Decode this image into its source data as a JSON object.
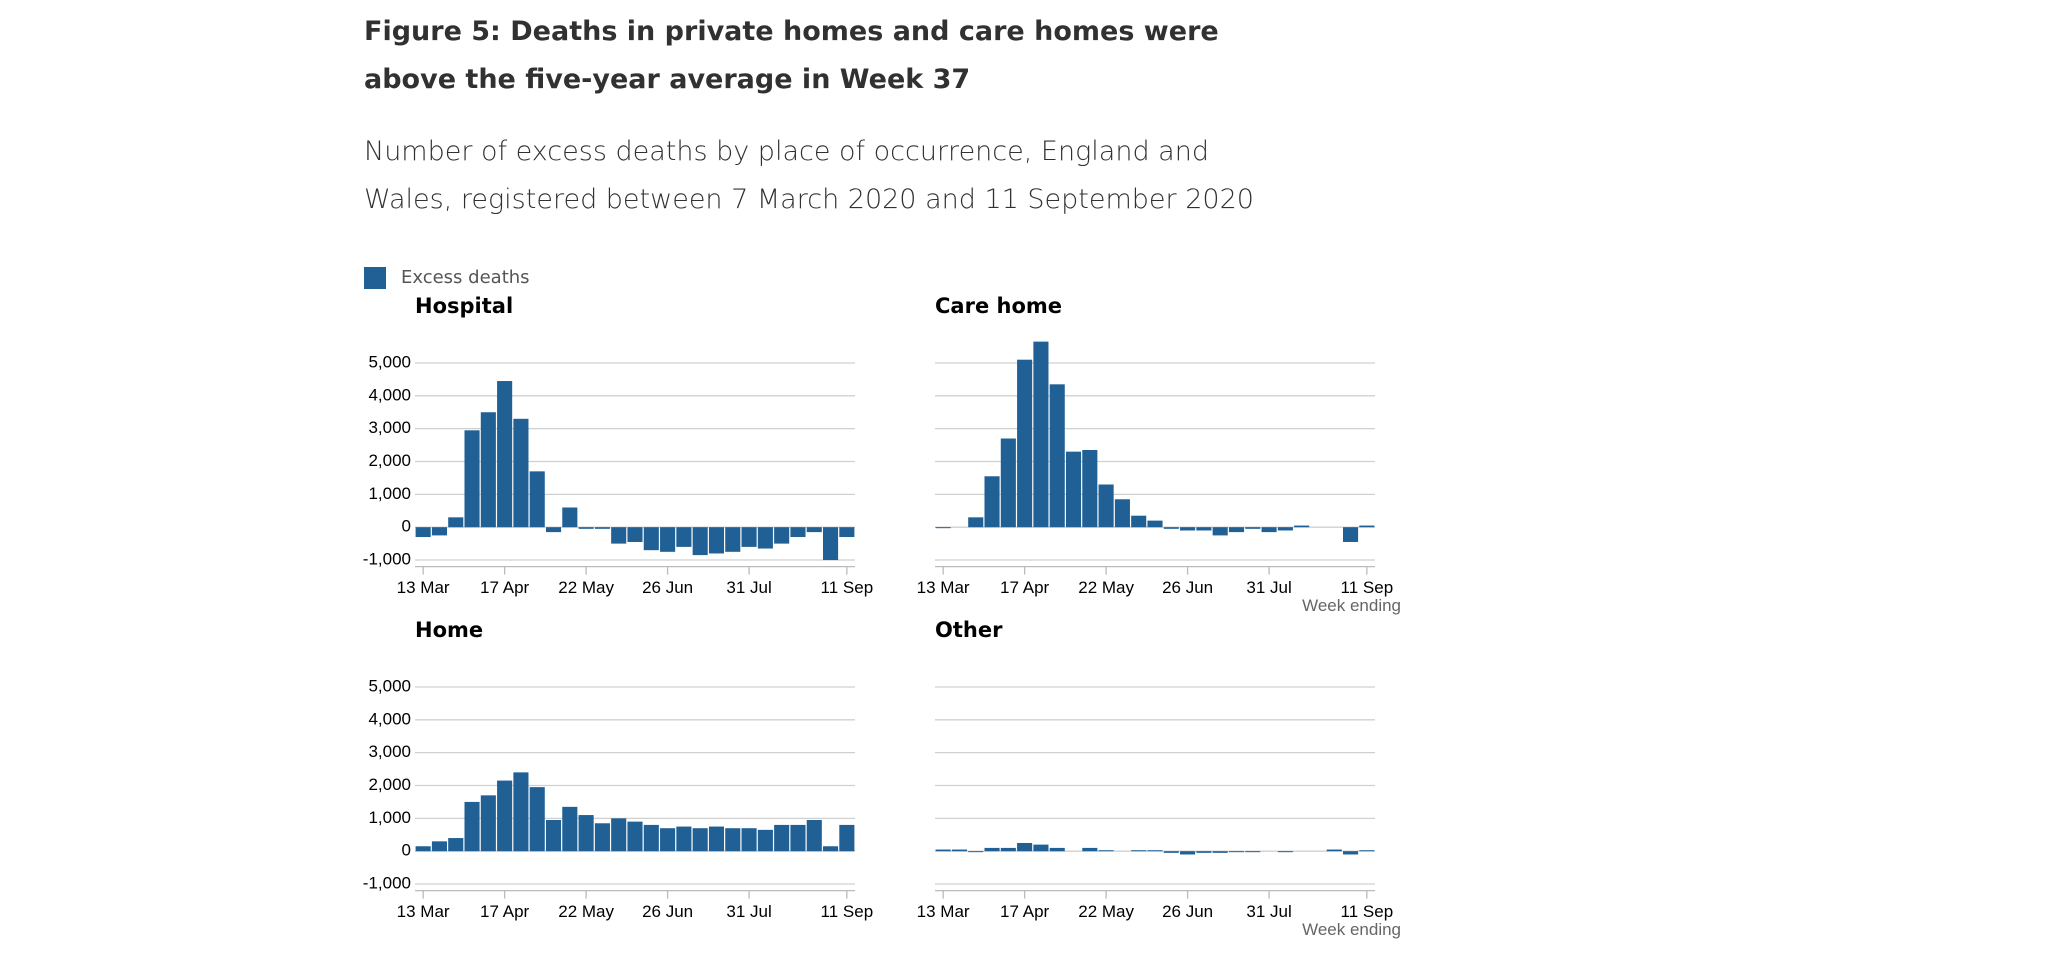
{
  "title": "Figure 5: Deaths in private homes and care homes were above the five-year average in Week 37",
  "subtitle": "Number of excess deaths by place of occurrence, England and Wales, registered between 7 March 2020 and 11 September 2020",
  "legend": {
    "label": "Excess deaths",
    "color": "#206095"
  },
  "chart_data": [
    {
      "type": "bar",
      "title": "Hospital",
      "color": "#206095",
      "categories": [
        "13 Mar",
        null,
        null,
        null,
        null,
        "17 Apr",
        null,
        null,
        null,
        null,
        "22 May",
        null,
        null,
        null,
        null,
        "26 Jun",
        null,
        null,
        null,
        null,
        "31 Jul",
        null,
        null,
        null,
        null,
        null,
        "11 Sep"
      ],
      "values": [
        -300,
        -250,
        300,
        2950,
        3500,
        4450,
        3300,
        1700,
        -150,
        600,
        -50,
        -50,
        -500,
        -450,
        -700,
        -750,
        -600,
        -850,
        -800,
        -750,
        -600,
        -650,
        -500,
        -300,
        -150,
        -1000,
        -300
      ],
      "ylim": [
        -1200,
        5800
      ],
      "yticks": [
        {
          "value": 5000,
          "label": "5,000"
        },
        {
          "value": 4000,
          "label": "4,000"
        },
        {
          "value": 3000,
          "label": "3,000"
        },
        {
          "value": 2000,
          "label": "2,000"
        },
        {
          "value": 1000,
          "label": "1,000"
        },
        0,
        {
          "value": -1000,
          "label": "-1,000"
        }
      ],
      "ytick_labels": true,
      "grid": true
    },
    {
      "type": "bar",
      "title": "Care home",
      "color": "#206095",
      "categories": [
        "13 Mar",
        null,
        null,
        null,
        null,
        "17 Apr",
        null,
        null,
        null,
        null,
        "22 May",
        null,
        null,
        null,
        null,
        "26 Jun",
        null,
        null,
        null,
        null,
        "31 Jul",
        null,
        null,
        null,
        null,
        null,
        "11 Sep"
      ],
      "values": [
        -30,
        0,
        300,
        1550,
        2700,
        5100,
        5650,
        4350,
        2300,
        2350,
        1300,
        850,
        350,
        200,
        -50,
        -100,
        -100,
        -250,
        -150,
        -50,
        -150,
        -100,
        50,
        0,
        0,
        -450,
        50
      ],
      "ylim": [
        -1200,
        5800
      ],
      "yticks": [
        {
          "value": 5000,
          "label": "5,000"
        },
        {
          "value": 4000,
          "label": "4,000"
        },
        {
          "value": 3000,
          "label": "3,000"
        },
        {
          "value": 2000,
          "label": "2,000"
        },
        {
          "value": 1000,
          "label": "1,000"
        },
        0,
        {
          "value": -1000,
          "label": "-1,000"
        }
      ],
      "ytick_labels": false,
      "grid": true,
      "xlabel": "Week ending"
    },
    {
      "type": "bar",
      "title": "Home",
      "color": "#206095",
      "categories": [
        "13 Mar",
        null,
        null,
        null,
        null,
        "17 Apr",
        null,
        null,
        null,
        null,
        "22 May",
        null,
        null,
        null,
        null,
        "26 Jun",
        null,
        null,
        null,
        null,
        "31 Jul",
        null,
        null,
        null,
        null,
        null,
        "11 Sep"
      ],
      "values": [
        150,
        300,
        400,
        1500,
        1700,
        2150,
        2400,
        1950,
        950,
        1350,
        1100,
        850,
        1000,
        900,
        800,
        700,
        750,
        700,
        750,
        700,
        700,
        650,
        800,
        800,
        950,
        150,
        800
      ],
      "ylim": [
        -1200,
        5800
      ],
      "yticks": [
        {
          "value": 5000,
          "label": "5,000"
        },
        {
          "value": 4000,
          "label": "4,000"
        },
        {
          "value": 3000,
          "label": "3,000"
        },
        {
          "value": 2000,
          "label": "2,000"
        },
        {
          "value": 1000,
          "label": "1,000"
        },
        0,
        {
          "value": -1000,
          "label": "-1,000"
        }
      ],
      "ytick_labels": true,
      "grid": true
    },
    {
      "type": "bar",
      "title": "Other",
      "color": "#206095",
      "categories": [
        "13 Mar",
        null,
        null,
        null,
        null,
        "17 Apr",
        null,
        null,
        null,
        null,
        "22 May",
        null,
        null,
        null,
        null,
        "26 Jun",
        null,
        null,
        null,
        null,
        "31 Jul",
        null,
        null,
        null,
        null,
        null,
        "11 Sep"
      ],
      "values": [
        50,
        50,
        -30,
        100,
        100,
        250,
        200,
        100,
        0,
        100,
        30,
        0,
        30,
        30,
        -50,
        -100,
        -50,
        -50,
        -30,
        -30,
        0,
        -30,
        0,
        0,
        50,
        -100,
        30
      ],
      "ylim": [
        -1200,
        5800
      ],
      "yticks": [
        {
          "value": 5000,
          "label": "5,000"
        },
        {
          "value": 4000,
          "label": "4,000"
        },
        {
          "value": 3000,
          "label": "3,000"
        },
        {
          "value": 2000,
          "label": "2,000"
        },
        {
          "value": 1000,
          "label": "1,000"
        },
        0,
        {
          "value": -1000,
          "label": "-1,000"
        }
      ],
      "ytick_labels": false,
      "grid": true,
      "xlabel": "Week ending"
    }
  ]
}
